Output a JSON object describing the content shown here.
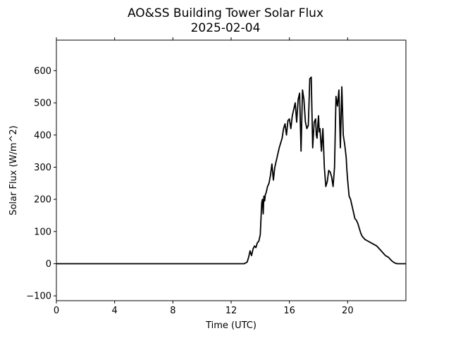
{
  "chart_data": {
    "type": "line",
    "title": "AO&SS Building Tower Solar Flux",
    "subtitle": "2025-02-04",
    "xlabel": "Time (UTC)",
    "ylabel": "Solar Flux (W/m^2)",
    "xlim": [
      0,
      24
    ],
    "ylim": [
      -115,
      695
    ],
    "xticks": [
      0,
      4,
      8,
      12,
      16,
      20
    ],
    "xtick_labels": [
      "0",
      "4",
      "8",
      "12",
      "16",
      "20"
    ],
    "yticks": [
      -100,
      0,
      100,
      200,
      300,
      400,
      500,
      600
    ],
    "ytick_labels": [
      "−100",
      "0",
      "100",
      "200",
      "300",
      "400",
      "500",
      "600"
    ],
    "grid": false,
    "legend": "none",
    "series": [
      {
        "color": "#000000",
        "x": [
          0,
          12.9,
          13.1,
          13.2,
          13.3,
          13.4,
          13.5,
          13.6,
          13.7,
          13.8,
          13.9,
          14.0,
          14.1,
          14.15,
          14.2,
          14.25,
          14.3,
          14.35,
          14.4,
          14.5,
          14.6,
          14.7,
          14.8,
          14.9,
          15.0,
          15.1,
          15.2,
          15.3,
          15.4,
          15.5,
          15.6,
          15.7,
          15.8,
          15.9,
          16.0,
          16.1,
          16.2,
          16.3,
          16.4,
          16.5,
          16.6,
          16.7,
          16.8,
          16.9,
          17.0,
          17.1,
          17.2,
          17.3,
          17.4,
          17.5,
          17.6,
          17.7,
          17.8,
          17.85,
          17.9,
          17.95,
          18.0,
          18.05,
          18.1,
          18.2,
          18.3,
          18.4,
          18.5,
          18.6,
          18.7,
          18.8,
          18.9,
          19.0,
          19.1,
          19.2,
          19.3,
          19.4,
          19.5,
          19.6,
          19.7,
          19.8,
          19.9,
          19.95,
          20.0,
          20.1,
          20.2,
          20.3,
          20.4,
          20.5,
          20.6,
          20.7,
          20.8,
          20.9,
          21.0,
          21.2,
          21.4,
          21.6,
          21.8,
          22.0,
          22.2,
          22.4,
          22.6,
          22.8,
          23.0,
          23.2,
          23.4,
          24.0
        ],
        "y": [
          0,
          0,
          5,
          20,
          40,
          25,
          45,
          55,
          50,
          65,
          70,
          90,
          190,
          200,
          155,
          210,
          195,
          215,
          220,
          240,
          250,
          275,
          310,
          260,
          300,
          320,
          340,
          360,
          375,
          390,
          420,
          435,
          400,
          445,
          450,
          420,
          460,
          480,
          500,
          440,
          510,
          530,
          350,
          540,
          510,
          440,
          420,
          430,
          575,
          580,
          360,
          440,
          450,
          400,
          390,
          430,
          460,
          410,
          420,
          350,
          420,
          300,
          240,
          255,
          290,
          285,
          270,
          240,
          300,
          520,
          490,
          540,
          360,
          550,
          400,
          370,
          330,
          290,
          260,
          210,
          200,
          180,
          160,
          140,
          135,
          125,
          110,
          95,
          85,
          75,
          70,
          65,
          60,
          55,
          45,
          35,
          25,
          20,
          10,
          3,
          0,
          0
        ]
      }
    ]
  }
}
